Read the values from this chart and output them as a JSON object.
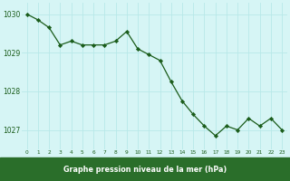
{
  "x": [
    0,
    1,
    2,
    3,
    4,
    5,
    6,
    7,
    8,
    9,
    10,
    11,
    12,
    13,
    14,
    15,
    16,
    17,
    18,
    19,
    20,
    21,
    22,
    23
  ],
  "y": [
    1030.0,
    1029.85,
    1029.65,
    1029.2,
    1029.3,
    1029.2,
    1029.2,
    1029.2,
    1029.3,
    1029.55,
    1029.1,
    1028.95,
    1028.8,
    1028.25,
    1027.75,
    1027.4,
    1027.1,
    1026.85,
    1027.1,
    1027.0,
    1027.3,
    1027.1,
    1027.3,
    1027.0
  ],
  "line_color": "#1a5c1a",
  "marker_color": "#1a5c1a",
  "bg_color": "#d6f5f5",
  "grid_color": "#b8e8e8",
  "xlabel": "Graphe pression niveau de la mer (hPa)",
  "xlabel_bar_color": "#2a6e2a",
  "tick_label_color": "#1a5c1a",
  "ylim": [
    1026.5,
    1030.3
  ],
  "yticks": [
    1027,
    1028,
    1029,
    1030
  ],
  "xlim": [
    -0.5,
    23.5
  ]
}
